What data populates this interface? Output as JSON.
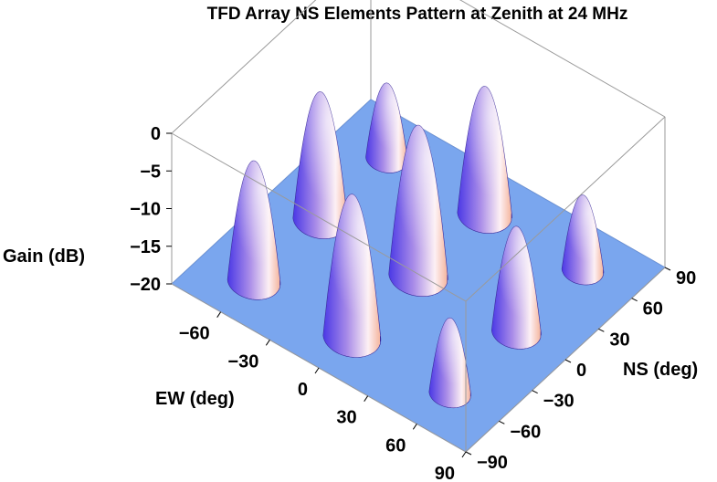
{
  "chart_data": {
    "type": "surface3d",
    "title": "TFD Array NS Elements Pattern at Zenith at 24 MHz",
    "xlabel": "EW (deg)",
    "ylabel": "NS (deg)",
    "zlabel": "Gain (dB)",
    "x_ticks": [
      "−60",
      "−30",
      "0",
      "30",
      "60",
      "90"
    ],
    "y_ticks": [
      "−90",
      "−60",
      "−30",
      "0",
      "30",
      "60",
      "90"
    ],
    "z_ticks": [
      "0",
      "−5",
      "−10",
      "−15",
      "−20"
    ],
    "xlim": [
      -90,
      90
    ],
    "ylim": [
      -90,
      90
    ],
    "zlim": [
      -20,
      0
    ],
    "floor_value": -20,
    "lobes": [
      {
        "ew": 0,
        "ns": 0,
        "peak_db": 0
      },
      {
        "ew": 0,
        "ns": -60,
        "peak_db": -1
      },
      {
        "ew": 0,
        "ns": 60,
        "peak_db": -3
      },
      {
        "ew": -60,
        "ns": 0,
        "peak_db": -3
      },
      {
        "ew": -60,
        "ns": -60,
        "peak_db": -4
      },
      {
        "ew": 60,
        "ns": 0,
        "peak_db": -6
      },
      {
        "ew": 60,
        "ns": 60,
        "peak_db": -10
      },
      {
        "ew": 60,
        "ns": -60,
        "peak_db": -10
      },
      {
        "ew": -60,
        "ns": 60,
        "peak_db": -10
      }
    ],
    "colors": {
      "floor": "#7aa6ee",
      "lobe_dark": "#4a38e6",
      "lobe_mid": "#a98ce8",
      "lobe_light": "#fdf0f4",
      "lobe_warm": "#f4b39a"
    }
  }
}
